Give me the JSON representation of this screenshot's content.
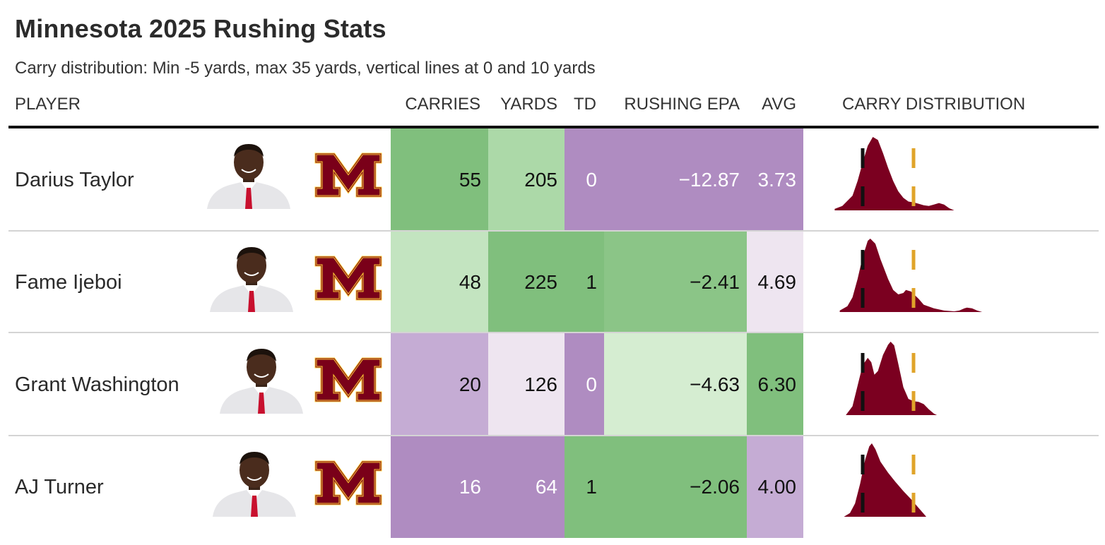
{
  "title": "Minnesota 2025 Rushing Stats",
  "subtitle": "Carry distribution: Min -5 yards, max 35 yards, vertical lines at 0 and 10 yards",
  "headers": {
    "player": "PLAYER",
    "carries": "CARRIES",
    "yards": "YARDS",
    "td": "TD",
    "epa": "RUSHING EPA",
    "avg": "AVG",
    "dist": "CARRY DISTRIBUTION"
  },
  "colors": {
    "dark_green": "#80bf7d",
    "med_green": "#8bc587",
    "light_green": "#acd9a8",
    "pale_green": "#c3e4c0",
    "paler_green": "#d5edd1",
    "dark_purple": "#af8cc1",
    "med_purple": "#c5acd4",
    "pale_purple": "#eee5f0",
    "density_fill": "#7b0020",
    "zero_line": "#111111",
    "ten_line": "#e0a42a",
    "logo_maroon": "#7a0019",
    "logo_gold": "#ffcc33"
  },
  "chart_data": {
    "type": "table",
    "title": "Minnesota 2025 Rushing Stats",
    "subtitle": "Carry distribution: Min -5 yards, max 35 yards, vertical lines at 0 and 10 yards",
    "columns": [
      "PLAYER",
      "CARRIES",
      "YARDS",
      "TD",
      "RUSHING EPA",
      "AVG",
      "CARRY DISTRIBUTION"
    ],
    "distribution_xlim": [
      -5,
      35
    ],
    "reference_lines": [
      0,
      10
    ],
    "rows": [
      {
        "player": "Darius Taylor",
        "carries": "55",
        "yards": "205",
        "td": "0",
        "epa": "−12.87",
        "avg": "3.73",
        "cell_colors": {
          "carries": "#80bf7d",
          "yards": "#acd9a8",
          "td": "#af8cc1",
          "epa": "#af8cc1",
          "avg": "#af8cc1"
        },
        "text_colors": {
          "carries": "#111111",
          "yards": "#111111",
          "td": "#ffffff",
          "epa": "#ffffff",
          "avg": "#ffffff"
        },
        "distribution": [
          [
            -5.5,
            0.02
          ],
          [
            -4,
            0.06
          ],
          [
            -2,
            0.2
          ],
          [
            -1,
            0.4
          ],
          [
            0,
            0.65
          ],
          [
            1,
            0.88
          ],
          [
            2,
            1.0
          ],
          [
            3,
            0.96
          ],
          [
            4,
            0.78
          ],
          [
            5,
            0.58
          ],
          [
            6,
            0.4
          ],
          [
            7,
            0.26
          ],
          [
            8,
            0.17
          ],
          [
            9,
            0.12
          ],
          [
            10,
            0.11
          ],
          [
            11,
            0.09
          ],
          [
            12,
            0.07
          ],
          [
            13,
            0.06
          ],
          [
            14,
            0.08
          ],
          [
            15,
            0.1
          ],
          [
            16,
            0.08
          ],
          [
            17,
            0.03
          ],
          [
            18,
            0.0
          ]
        ]
      },
      {
        "player": "Fame Ijeboi",
        "carries": "48",
        "yards": "225",
        "td": "1",
        "epa": "−2.41",
        "avg": "4.69",
        "cell_colors": {
          "carries": "#c3e4c0",
          "yards": "#80bf7d",
          "td": "#80bf7d",
          "epa": "#8bc587",
          "avg": "#eee5f0"
        },
        "text_colors": {
          "carries": "#111111",
          "yards": "#111111",
          "td": "#111111",
          "epa": "#111111",
          "avg": "#111111"
        },
        "distribution": [
          [
            -4.5,
            0.02
          ],
          [
            -3,
            0.08
          ],
          [
            -2,
            0.2
          ],
          [
            -1,
            0.45
          ],
          [
            0,
            0.75
          ],
          [
            1,
            0.97
          ],
          [
            1.5,
            1.0
          ],
          [
            2.5,
            0.93
          ],
          [
            3.5,
            0.72
          ],
          [
            5,
            0.45
          ],
          [
            6,
            0.3
          ],
          [
            7,
            0.24
          ],
          [
            8,
            0.26
          ],
          [
            8.5,
            0.3
          ],
          [
            9.5,
            0.28
          ],
          [
            11,
            0.18
          ],
          [
            12,
            0.1
          ],
          [
            14,
            0.05
          ],
          [
            16,
            0.02
          ],
          [
            18,
            0.01
          ],
          [
            19,
            0.02
          ],
          [
            20,
            0.05
          ],
          [
            20.5,
            0.06
          ],
          [
            21.5,
            0.05
          ],
          [
            22.5,
            0.02
          ],
          [
            23.5,
            0.0
          ]
        ]
      },
      {
        "player": "Grant Washington",
        "carries": "20",
        "yards": "126",
        "td": "0",
        "epa": "−4.63",
        "avg": "6.30",
        "cell_colors": {
          "carries": "#c5acd4",
          "yards": "#eee5f0",
          "td": "#af8cc1",
          "epa": "#d5edd1",
          "avg": "#80bf7d"
        },
        "text_colors": {
          "carries": "#111111",
          "yards": "#111111",
          "td": "#ffffff",
          "epa": "#111111",
          "avg": "#111111"
        },
        "distribution": [
          [
            -3.3,
            0.0
          ],
          [
            -2,
            0.12
          ],
          [
            -1,
            0.4
          ],
          [
            0,
            0.68
          ],
          [
            1,
            0.78
          ],
          [
            1.7,
            0.72
          ],
          [
            2.3,
            0.55
          ],
          [
            3,
            0.6
          ],
          [
            4,
            0.82
          ],
          [
            5,
            0.96
          ],
          [
            5.5,
            1.0
          ],
          [
            6.2,
            0.95
          ],
          [
            7,
            0.7
          ],
          [
            8,
            0.38
          ],
          [
            9,
            0.22
          ],
          [
            10,
            0.19
          ],
          [
            11,
            0.18
          ],
          [
            12,
            0.15
          ],
          [
            13,
            0.08
          ],
          [
            14,
            0.02
          ],
          [
            14.6,
            0.0
          ]
        ]
      },
      {
        "player": "AJ Turner",
        "carries": "16",
        "yards": "64",
        "td": "1",
        "epa": "−2.06",
        "avg": "4.00",
        "cell_colors": {
          "carries": "#af8cc1",
          "yards": "#af8cc1",
          "td": "#80bf7d",
          "epa": "#80bf7d",
          "avg": "#c5acd4"
        },
        "text_colors": {
          "carries": "#ffffff",
          "yards": "#ffffff",
          "td": "#111111",
          "epa": "#111111",
          "avg": "#111111"
        },
        "distribution": [
          [
            -3.7,
            0.0
          ],
          [
            -2.5,
            0.05
          ],
          [
            -1.5,
            0.18
          ],
          [
            -0.5,
            0.45
          ],
          [
            0.5,
            0.78
          ],
          [
            1.3,
            0.96
          ],
          [
            1.8,
            1.0
          ],
          [
            2.5,
            0.92
          ],
          [
            3.5,
            0.75
          ],
          [
            5,
            0.6
          ],
          [
            6.5,
            0.47
          ],
          [
            8,
            0.35
          ],
          [
            9.5,
            0.24
          ],
          [
            11,
            0.12
          ],
          [
            12,
            0.04
          ],
          [
            12.5,
            0.0
          ]
        ]
      }
    ]
  }
}
